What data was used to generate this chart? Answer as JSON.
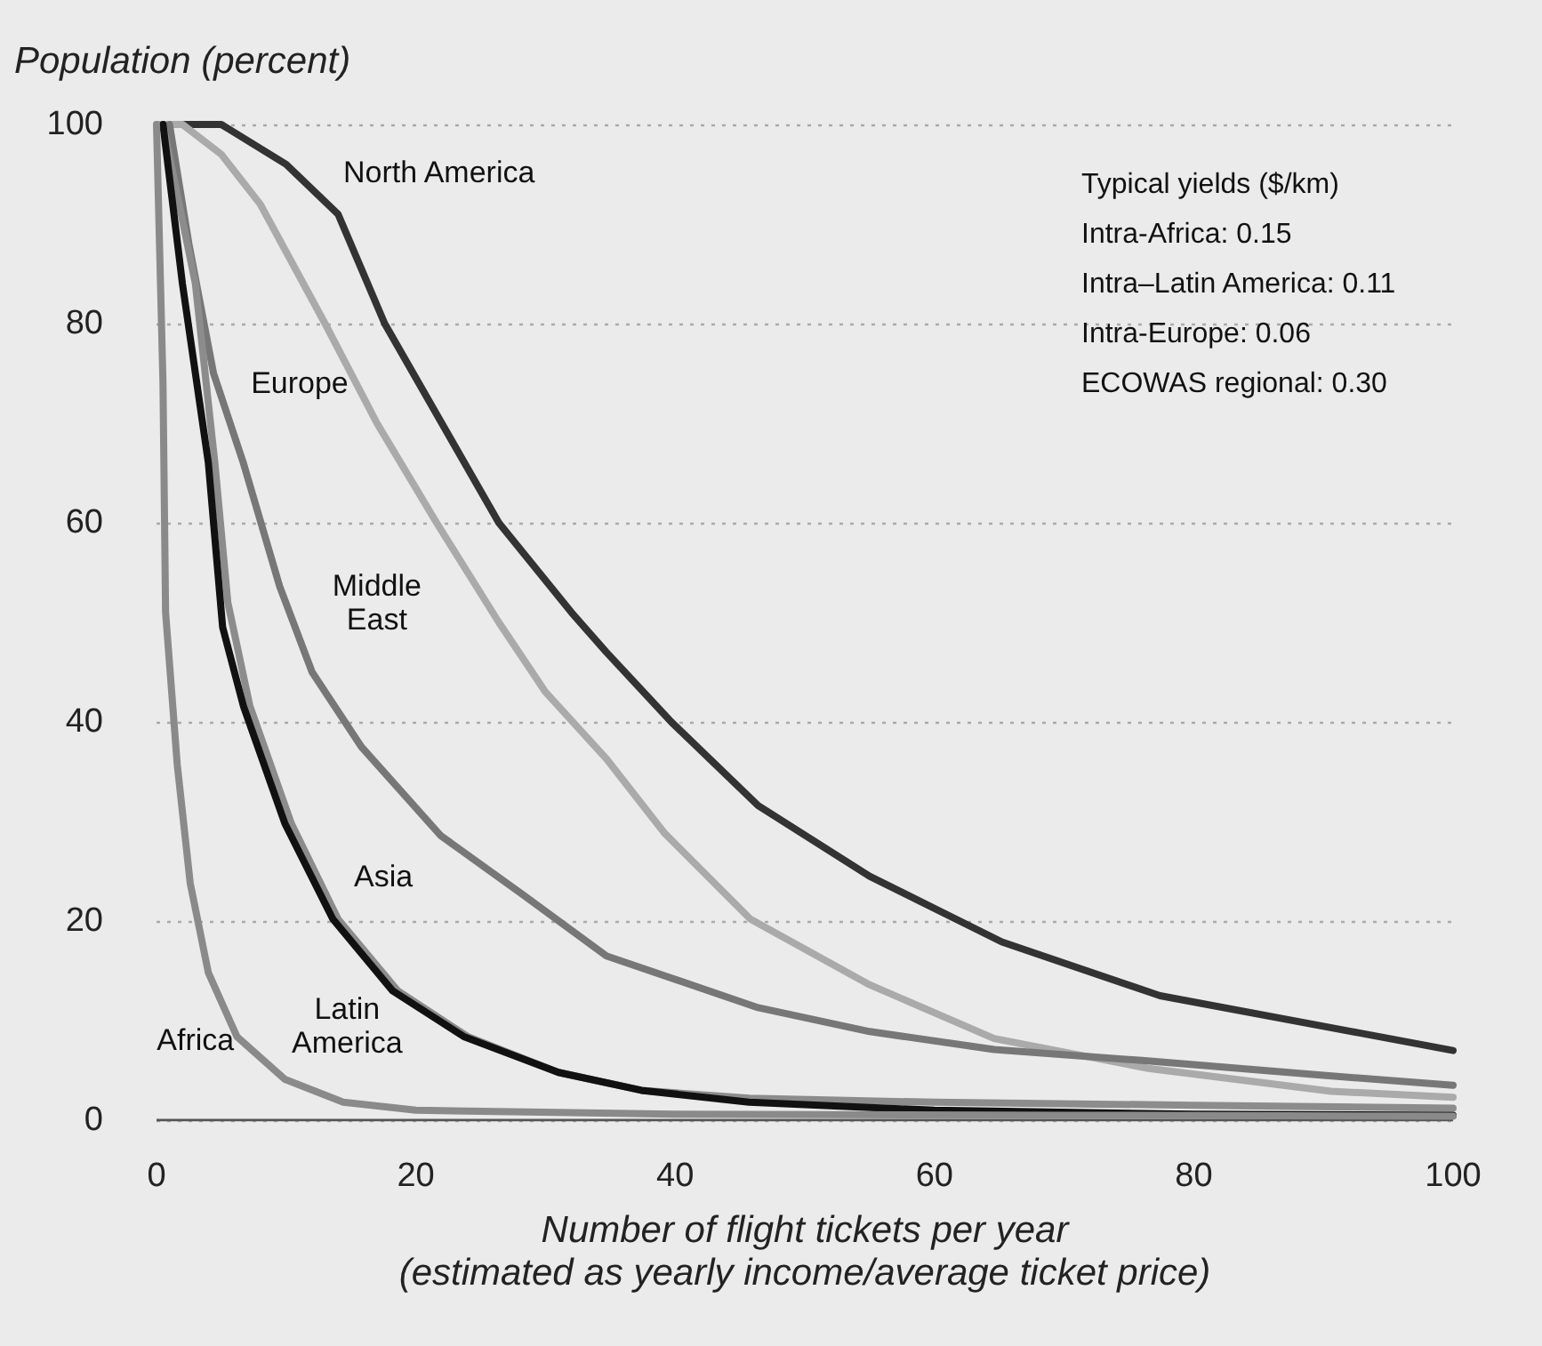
{
  "chart_data": {
    "type": "line",
    "ylabel": "Population (percent)",
    "xlabel": "Number of flight tickets per year\n(estimated as yearly income/average ticket price)",
    "xlim": [
      0,
      100
    ],
    "xticks": [
      0,
      20,
      40,
      60,
      80,
      100
    ],
    "ylim": [
      0,
      100
    ],
    "yticks": [
      0,
      20,
      40,
      60,
      80,
      100
    ],
    "grid": "y",
    "legend": false,
    "marker": "none",
    "line_style": "solid",
    "annotations": [
      "Typical yields ($/km)",
      "Intra-Africa: 0.15",
      "Intra–Latin America: 0.11",
      "Intra-Europe: 0.06",
      "ECOWAS regional: 0.30"
    ],
    "series": [
      {
        "name": "North America",
        "color": "#333333",
        "x": [
          2,
          5,
          10,
          14,
          17.6,
          22,
          26.4,
          32,
          34.7,
          39.7,
          46.4,
          55,
          65.2,
          77.4,
          92.2,
          100
        ],
        "values": [
          100,
          100,
          96,
          91,
          80,
          70,
          60,
          51,
          47,
          40,
          31.6,
          24.5,
          17.9,
          12.5,
          8.9,
          7
        ]
      },
      {
        "name": "Europe",
        "color": "#aaaaaa",
        "x": [
          0,
          2,
          5,
          8,
          13,
          17,
          21.6,
          26.4,
          30,
          34.7,
          39.2,
          45.8,
          55,
          64.6,
          76.5,
          90.6,
          100
        ],
        "values": [
          100,
          100,
          97,
          92,
          80,
          70,
          60,
          50,
          43,
          36.3,
          28.8,
          20.2,
          13.6,
          8.2,
          5.2,
          2.9,
          2.3
        ]
      },
      {
        "name": "Middle East",
        "color": "#777777",
        "x": [
          1,
          2.5,
          4.4,
          6.7,
          9.5,
          12,
          15.8,
          21.9,
          28.2,
          34.7,
          46.4,
          55,
          64.6,
          76,
          90,
          100
        ],
        "values": [
          100,
          88,
          75,
          66,
          53.6,
          45,
          37.5,
          28.6,
          22.7,
          16.5,
          11.3,
          8.9,
          7.1,
          6,
          4.5,
          3.5
        ]
      },
      {
        "name": "Asia",
        "color": "#8c8c8c",
        "x": [
          0.5,
          3,
          4.5,
          5.5,
          7.2,
          10.4,
          14,
          18.6,
          24,
          31,
          37.4,
          45.7,
          60,
          80,
          100
        ],
        "values": [
          100,
          84,
          66,
          52,
          41.6,
          29.8,
          20.2,
          13,
          8.4,
          4.8,
          3,
          2.2,
          1.8,
          1.5,
          1.2
        ]
      },
      {
        "name": "Latin America",
        "color": "#111111",
        "x": [
          0.5,
          2,
          4,
          5.1,
          6.7,
          9.9,
          13.6,
          18.2,
          23.7,
          31,
          37.4,
          45.7,
          60,
          80,
          100
        ],
        "values": [
          100,
          84,
          66,
          49.5,
          41.6,
          29.8,
          20.2,
          13,
          8.4,
          4.8,
          3,
          1.8,
          1,
          0.6,
          0.5
        ]
      },
      {
        "name": "Africa",
        "color": "#8a8a8a",
        "x": [
          0,
          0.5,
          0.7,
          1.6,
          2.6,
          4,
          6.2,
          9.9,
          14.4,
          20,
          40,
          70,
          100
        ],
        "values": [
          100,
          74,
          51,
          35.7,
          23.8,
          14.8,
          8.4,
          4.1,
          1.8,
          1,
          0.6,
          0.5,
          0.4
        ]
      }
    ]
  }
}
